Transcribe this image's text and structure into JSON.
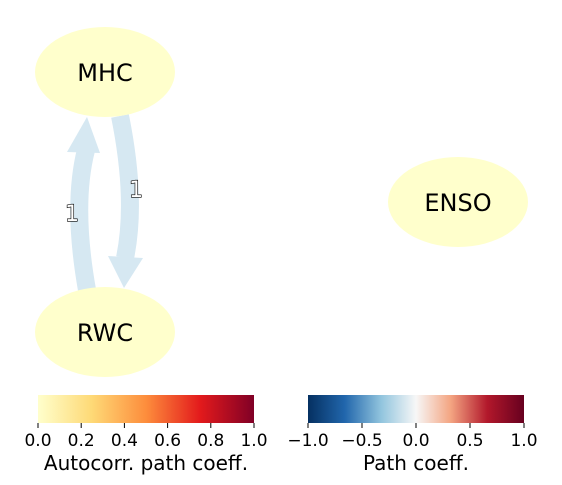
{
  "nodes": [
    {
      "id": "mhc",
      "label": "MHC",
      "color": "#ffffcc"
    },
    {
      "id": "enso",
      "label": "ENSO",
      "color": "#ffffcc"
    },
    {
      "id": "rwc",
      "label": "RWC",
      "color": "#ffffcc"
    }
  ],
  "edges": [
    {
      "from": "RWC",
      "to": "MHC",
      "label": "1",
      "color": "#d6e8f2"
    },
    {
      "from": "MHC",
      "to": "RWC",
      "label": "1",
      "color": "#d6e8f2"
    }
  ],
  "colorbars": {
    "autocorr": {
      "title": "Autocorr. path coeff.",
      "ticks": [
        "0.0",
        "0.2",
        "0.4",
        "0.6",
        "0.8",
        "1.0"
      ],
      "colors": [
        "#ffffcc",
        "#fed976",
        "#fd8d3c",
        "#e31a1c",
        "#800026"
      ]
    },
    "path": {
      "title": "Path coeff.",
      "ticks": [
        "−1.0",
        "−0.5",
        "0.0",
        "0.5",
        "1.0"
      ],
      "colors": [
        "#053061",
        "#2166ac",
        "#92c5de",
        "#f7f7f7",
        "#f4a582",
        "#b2182b",
        "#67001f"
      ]
    }
  }
}
